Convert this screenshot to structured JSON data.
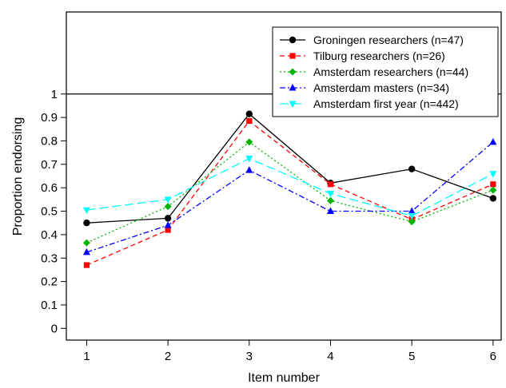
{
  "chart_data": {
    "type": "line",
    "title": "",
    "xlabel": "Item number",
    "ylabel": "Proportion endorsing",
    "x": [
      1,
      2,
      3,
      4,
      5,
      6
    ],
    "xticks": [
      "1",
      "2",
      "3",
      "4",
      "5",
      "6"
    ],
    "yticks": [
      "0",
      "0.1",
      "0.2",
      "0.3",
      "0.4",
      "0.5",
      "0.6",
      "0.7",
      "0.8",
      "0.9",
      "1"
    ],
    "xlim": [
      0.75,
      6.1
    ],
    "ylim": [
      -0.05,
      1.35
    ],
    "reference_line": 1,
    "legend_position": "top-right",
    "series": [
      {
        "name": "Groningen researchers (n=47)",
        "color": "#000000",
        "marker": "circle",
        "dash": "solid",
        "values": [
          0.45,
          0.47,
          0.915,
          0.62,
          0.68,
          0.555
        ]
      },
      {
        "name": "Tilburg researchers (n=26)",
        "color": "#ff0000",
        "marker": "square",
        "dash": "dashed",
        "values": [
          0.27,
          0.42,
          0.885,
          0.615,
          0.465,
          0.615
        ]
      },
      {
        "name": "Amsterdam researchers (n=44)",
        "color": "#00b400",
        "marker": "diamond",
        "dash": "dotted",
        "values": [
          0.365,
          0.52,
          0.795,
          0.545,
          0.455,
          0.59
        ]
      },
      {
        "name": "Amsterdam masters (n=34)",
        "color": "#0000ff",
        "marker": "triangle-up",
        "dash": "dashdot",
        "values": [
          0.325,
          0.44,
          0.675,
          0.5,
          0.5,
          0.795
        ]
      },
      {
        "name": "Amsterdam first year (n=442)",
        "color": "#00ffff",
        "marker": "triangle-down",
        "dash": "longdash",
        "values": [
          0.505,
          0.55,
          0.725,
          0.575,
          0.48,
          0.66
        ]
      }
    ]
  }
}
